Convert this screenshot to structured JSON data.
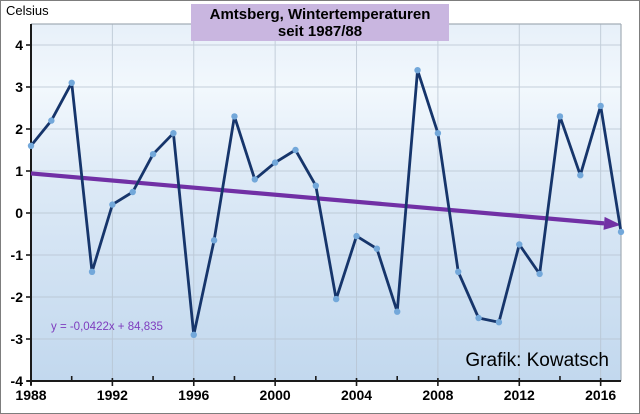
{
  "header": {
    "y_axis_unit_label": "Celsius",
    "title_line1": "Amtsberg, Wintertemperaturen",
    "title_line2": "seit 1987/88",
    "title_bg": "#c9b6e0"
  },
  "annotations": {
    "trend_equation": "y = -0,0422x + 84,835",
    "credit": "Grafik: Kowatsch"
  },
  "chart_data": {
    "type": "line",
    "title": "Amtsberg, Wintertemperaturen seit 1987/88",
    "xlabel": "",
    "ylabel": "Celsius",
    "x": [
      1988,
      1989,
      1990,
      1991,
      1992,
      1993,
      1994,
      1995,
      1996,
      1997,
      1998,
      1999,
      2000,
      2001,
      2002,
      2003,
      2004,
      2005,
      2006,
      2007,
      2008,
      2009,
      2010,
      2011,
      2012,
      2013,
      2014,
      2015,
      2016,
      2017
    ],
    "values": [
      1.6,
      2.2,
      3.1,
      -1.4,
      0.2,
      0.5,
      1.4,
      1.9,
      -2.9,
      -0.65,
      2.3,
      0.8,
      1.2,
      1.5,
      0.65,
      -2.05,
      -0.55,
      -0.85,
      -2.35,
      3.4,
      1.9,
      -1.4,
      -2.5,
      -2.6,
      -0.75,
      -1.45,
      2.3,
      0.9,
      2.55,
      -0.45
    ],
    "xlim": [
      1988,
      2017
    ],
    "ylim": [
      -4,
      4.5
    ],
    "x_tick_labels": [
      1988,
      1992,
      1996,
      2000,
      2004,
      2008,
      2012,
      2016
    ],
    "x_tick_minor": [
      1990,
      1994,
      1998,
      2002,
      2006,
      2010,
      2014
    ],
    "y_ticks": [
      4,
      3,
      2,
      1,
      0,
      -1,
      -2,
      -3,
      -4
    ],
    "grid": true,
    "legend": "none",
    "trend": {
      "slope": -0.0422,
      "intercept": 84.835,
      "label": "y = -0,0422x + 84,835"
    },
    "colors": {
      "line": "#16356b",
      "marker": "#73a8da",
      "trend": "#7130a5",
      "grid": "#b6c2cf",
      "axis_dark": "#1a1a1a",
      "frame_light": "#a3adb6",
      "tick_label": "#000000",
      "plot_bg_top": "#e7f0f9",
      "plot_bg_light": "#f2f8fd",
      "plot_bg_mid": "#dce9f6",
      "plot_bg_bottom": "#c2d8ee"
    }
  }
}
